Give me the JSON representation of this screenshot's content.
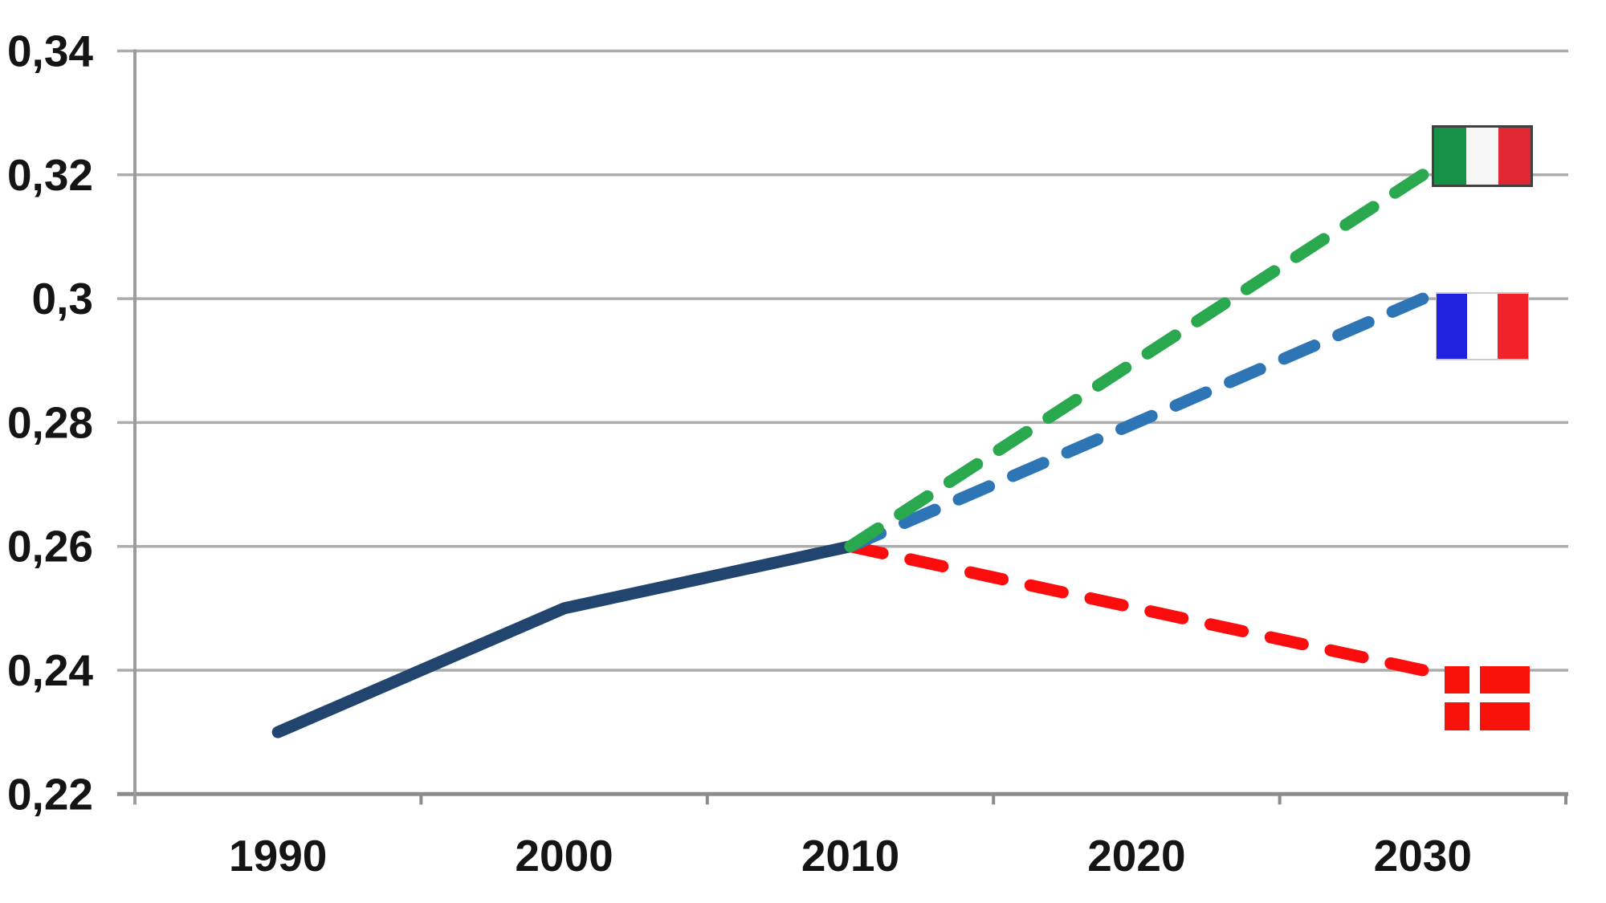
{
  "chart_data": {
    "type": "line",
    "title": "",
    "xlabel": "",
    "ylabel": "",
    "categories": [
      "1990",
      "2000",
      "2010",
      "2020",
      "2030"
    ],
    "ylim": [
      0.22,
      0.34
    ],
    "y_tick_step": 0.02,
    "decimal_separator": ",",
    "grid": "horizontal",
    "legend": "flag markers at right end of projection lines",
    "y_ticks": [
      {
        "value": 0.34,
        "label": "0,34"
      },
      {
        "value": 0.32,
        "label": "0,32"
      },
      {
        "value": 0.3,
        "label": "0,3"
      },
      {
        "value": 0.28,
        "label": "0,28"
      },
      {
        "value": 0.26,
        "label": "0,26"
      },
      {
        "value": 0.24,
        "label": "0,24"
      },
      {
        "value": 0.22,
        "label": "0,22"
      }
    ],
    "x_ticks": [
      {
        "label": "1990"
      },
      {
        "label": "2000"
      },
      {
        "label": "2010"
      },
      {
        "label": "2020"
      },
      {
        "label": "2030"
      }
    ],
    "series": [
      {
        "name": "historical",
        "style": "solid",
        "color": "#21456F",
        "width": 15,
        "values": [
          0.23,
          0.25,
          0.26,
          null,
          null
        ]
      },
      {
        "name": "projection-denmark",
        "style": "dashed",
        "color": "#FC0D0D",
        "width": 15,
        "values": [
          null,
          null,
          0.26,
          0.25,
          0.24
        ],
        "flag": "denmark"
      },
      {
        "name": "projection-france",
        "style": "dashed",
        "color": "#2E75B6",
        "width": 15,
        "values": [
          null,
          null,
          0.26,
          0.28,
          0.3
        ],
        "flag": "france"
      },
      {
        "name": "projection-italy",
        "style": "dashed",
        "color": "#2AA84D",
        "width": 15,
        "values": [
          null,
          null,
          0.26,
          0.29,
          0.32
        ],
        "flag": "italy"
      }
    ],
    "flags": {
      "italy": {
        "type": "vertical-tricolor",
        "stripes": [
          "#149347",
          "#F6F6F6",
          "#E02832"
        ],
        "border": "#404040"
      },
      "france": {
        "type": "vertical-tricolor",
        "stripes": [
          "#2121E0",
          "#FFFFFF",
          "#F2222B"
        ],
        "border": "#CCCCCC"
      },
      "denmark": {
        "type": "nordic-cross",
        "field": "#F8130A",
        "cross": "#FFFFFF"
      }
    },
    "colors": {
      "background": "#FFFFFF",
      "gridline": "#ACACAC",
      "y_axis_line": "#9C9C9C",
      "x_axis_line": "#8C8C8C",
      "tick_label": "#141414"
    }
  }
}
